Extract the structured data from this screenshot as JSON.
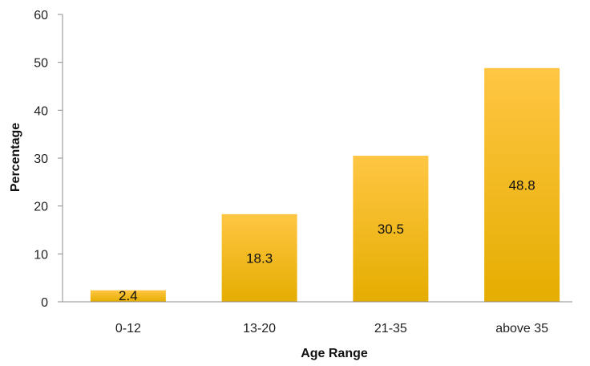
{
  "chart_data": {
    "type": "bar",
    "categories": [
      "0-12",
      "13-20",
      "21-35",
      "above 35"
    ],
    "values": [
      2.4,
      18.3,
      30.5,
      48.8
    ],
    "data_labels": [
      "2.4",
      "18.3",
      "30.5",
      "48.8"
    ],
    "title": "",
    "xlabel": "Age Range",
    "ylabel": "Percentage",
    "ylim": [
      0,
      60
    ],
    "yticks": [
      0,
      10,
      20,
      30,
      40,
      50,
      60
    ],
    "ytick_labels": [
      "0",
      "10",
      "20",
      "30",
      "40",
      "50",
      "60"
    ],
    "grid": false,
    "legend": "none",
    "colors": {
      "bar_top": "#ffc644",
      "bar_bottom": "#e5ad00",
      "axis": "#8c8c8c"
    }
  }
}
